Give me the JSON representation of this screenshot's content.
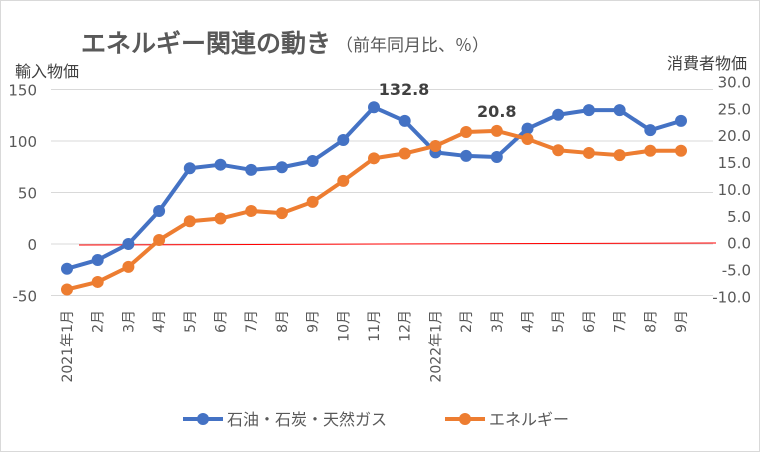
{
  "chart_data": {
    "type": "line",
    "title": "エネルギー関連の動き",
    "subtitle": "（前年同月比、％）",
    "ylabel_left": "輸入物価",
    "ylabel_right": "消費者物価",
    "categories": [
      "2021年1月",
      "2月",
      "3月",
      "4月",
      "5月",
      "6月",
      "7月",
      "8月",
      "9月",
      "10月",
      "11月",
      "12月",
      "2022年1月",
      "2月",
      "3月",
      "4月",
      "5月",
      "6月",
      "7月",
      "8月",
      "9月"
    ],
    "ylim_left": [
      -50,
      150
    ],
    "yticks_left": [
      "150",
      "100",
      "50",
      "0",
      "-50"
    ],
    "ylim_right": [
      -10,
      30
    ],
    "yticks_right": [
      "30.0",
      "25.0",
      "20.0",
      "15.0",
      "10.0",
      "5.0",
      "0.0",
      "-5.0",
      "-10.0"
    ],
    "grid": true,
    "legend_position": "bottom",
    "series": [
      {
        "name": "石油・石炭・天然ガス",
        "axis": "left",
        "color": "#4472C4",
        "values": [
          -24,
          -15.5,
          0,
          32,
          73.5,
          77,
          72,
          74.5,
          80.6,
          101,
          132.8,
          119.5,
          89,
          85.5,
          84.5,
          112,
          125.5,
          130,
          130,
          110.5,
          119.5
        ]
      },
      {
        "name": "エネルギー",
        "axis": "right",
        "color": "#ED7D31",
        "values": [
          -8.7,
          -7.3,
          -4.5,
          0.5,
          4.0,
          4.5,
          5.9,
          5.5,
          7.6,
          11.5,
          15.7,
          16.6,
          18.0,
          20.6,
          20.8,
          19.3,
          17.2,
          16.7,
          16.3,
          17.1,
          17.1
        ]
      }
    ],
    "annotations": [
      {
        "text": "132.8",
        "series": 0,
        "index": 10
      },
      {
        "text": "20.8",
        "series": 1,
        "index": 14
      }
    ],
    "reference_line": {
      "axis": "right",
      "value": 0,
      "color": "#FF0000"
    }
  }
}
